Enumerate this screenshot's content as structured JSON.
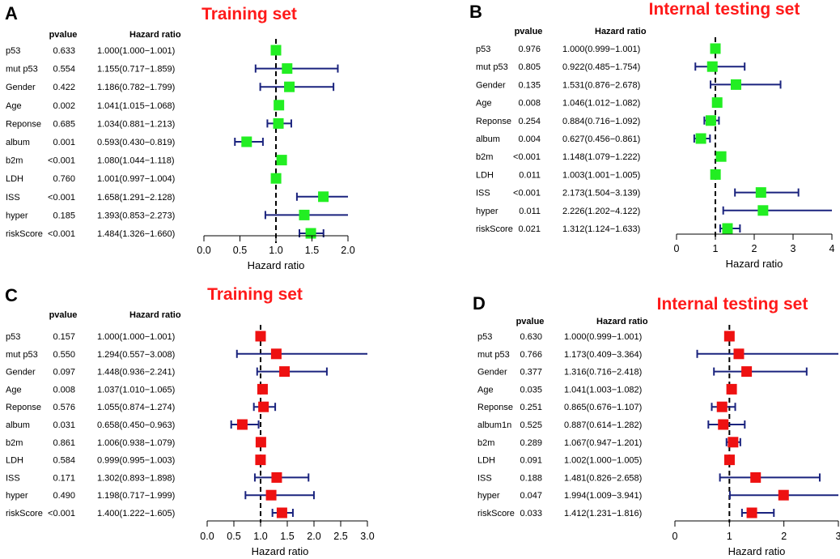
{
  "figure": {
    "background": "#ffffff"
  },
  "chart_data": [
    {
      "type": "forest",
      "letter": "A",
      "title": "Training set",
      "color": "#22ee22",
      "pvalue_header": "pvalue",
      "hr_header": "Hazard ratio",
      "xlabel": "Hazard ratio",
      "xlim": [
        0,
        2
      ],
      "xticks": [
        0,
        0.5,
        1,
        1.5,
        2
      ],
      "xtick_labels": [
        "0.0",
        "0.5",
        "1.0",
        "1.5",
        "2.0"
      ],
      "reference_line": 1,
      "rows": [
        {
          "name": "p53",
          "pvalue": "0.633",
          "hr_text": "1.000(1.000−1.001)",
          "hr": 1.0,
          "lo": 1.0,
          "hi": 1.001
        },
        {
          "name": "mut p53",
          "pvalue": "0.554",
          "hr_text": "1.155(0.717−1.859)",
          "hr": 1.155,
          "lo": 0.717,
          "hi": 1.859
        },
        {
          "name": "Gender",
          "pvalue": "0.422",
          "hr_text": "1.186(0.782−1.799)",
          "hr": 1.186,
          "lo": 0.782,
          "hi": 1.799
        },
        {
          "name": "Age",
          "pvalue": "0.002",
          "hr_text": "1.041(1.015−1.068)",
          "hr": 1.041,
          "lo": 1.015,
          "hi": 1.068
        },
        {
          "name": "Reponse",
          "pvalue": "0.685",
          "hr_text": "1.034(0.881−1.213)",
          "hr": 1.034,
          "lo": 0.881,
          "hi": 1.213
        },
        {
          "name": "album",
          "pvalue": "0.001",
          "hr_text": "0.593(0.430−0.819)",
          "hr": 0.593,
          "lo": 0.43,
          "hi": 0.819
        },
        {
          "name": "b2m",
          "pvalue": "<0.001",
          "hr_text": "1.080(1.044−1.118)",
          "hr": 1.08,
          "lo": 1.044,
          "hi": 1.118
        },
        {
          "name": "LDH",
          "pvalue": "0.760",
          "hr_text": "1.001(0.997−1.004)",
          "hr": 1.001,
          "lo": 0.997,
          "hi": 1.004
        },
        {
          "name": "ISS",
          "pvalue": "<0.001",
          "hr_text": "1.658(1.291−2.128)",
          "hr": 1.658,
          "lo": 1.291,
          "hi": 2.128
        },
        {
          "name": "hyper",
          "pvalue": "0.185",
          "hr_text": "1.393(0.853−2.273)",
          "hr": 1.393,
          "lo": 0.853,
          "hi": 2.273
        },
        {
          "name": "riskScore",
          "pvalue": "<0.001",
          "hr_text": "1.484(1.326−1.660)",
          "hr": 1.484,
          "lo": 1.326,
          "hi": 1.66
        }
      ]
    },
    {
      "type": "forest",
      "letter": "B",
      "title": "Internal testing set",
      "color": "#22ee22",
      "pvalue_header": "pvalue",
      "hr_header": "Hazard ratio",
      "xlabel": "Hazard ratio",
      "xlim": [
        0,
        4
      ],
      "xticks": [
        0,
        1,
        2,
        3,
        4
      ],
      "xtick_labels": [
        "0",
        "1",
        "2",
        "3",
        "4"
      ],
      "reference_line": 1,
      "rows": [
        {
          "name": "p53",
          "pvalue": "0.976",
          "hr_text": "1.000(0.999−1.001)",
          "hr": 1.0,
          "lo": 0.999,
          "hi": 1.001
        },
        {
          "name": "mut p53",
          "pvalue": "0.805",
          "hr_text": "0.922(0.485−1.754)",
          "hr": 0.922,
          "lo": 0.485,
          "hi": 1.754
        },
        {
          "name": "Gender",
          "pvalue": "0.135",
          "hr_text": "1.531(0.876−2.678)",
          "hr": 1.531,
          "lo": 0.876,
          "hi": 2.678
        },
        {
          "name": "Age",
          "pvalue": "0.008",
          "hr_text": "1.046(1.012−1.082)",
          "hr": 1.046,
          "lo": 1.012,
          "hi": 1.082
        },
        {
          "name": "Reponse",
          "pvalue": "0.254",
          "hr_text": "0.884(0.716−1.092)",
          "hr": 0.884,
          "lo": 0.716,
          "hi": 1.092
        },
        {
          "name": "album",
          "pvalue": "0.004",
          "hr_text": "0.627(0.456−0.861)",
          "hr": 0.627,
          "lo": 0.456,
          "hi": 0.861
        },
        {
          "name": "b2m",
          "pvalue": "<0.001",
          "hr_text": "1.148(1.079−1.222)",
          "hr": 1.148,
          "lo": 1.079,
          "hi": 1.222
        },
        {
          "name": "LDH",
          "pvalue": "0.011",
          "hr_text": "1.003(1.001−1.005)",
          "hr": 1.003,
          "lo": 1.001,
          "hi": 1.005
        },
        {
          "name": "ISS",
          "pvalue": "<0.001",
          "hr_text": "2.173(1.504−3.139)",
          "hr": 2.173,
          "lo": 1.504,
          "hi": 3.139
        },
        {
          "name": "hyper",
          "pvalue": "0.011",
          "hr_text": "2.226(1.202−4.122)",
          "hr": 2.226,
          "lo": 1.202,
          "hi": 4.122
        },
        {
          "name": "riskScore",
          "pvalue": "0.021",
          "hr_text": "1.312(1.124−1.633)",
          "hr": 1.312,
          "lo": 1.124,
          "hi": 1.633
        }
      ]
    },
    {
      "type": "forest",
      "letter": "C",
      "title": "Training set",
      "color": "#ee1111",
      "pvalue_header": "pvalue",
      "hr_header": "Hazard ratio",
      "xlabel": "Hazard ratio",
      "xlim": [
        0,
        3
      ],
      "xticks": [
        0,
        0.5,
        1,
        1.5,
        2,
        2.5,
        3
      ],
      "xtick_labels": [
        "0.0",
        "0.5",
        "1.0",
        "1.5",
        "2.0",
        "2.5",
        "3.0"
      ],
      "reference_line": 1,
      "rows": [
        {
          "name": "p53",
          "pvalue": "0.157",
          "hr_text": "1.000(1.000−1.001)",
          "hr": 1.0,
          "lo": 1.0,
          "hi": 1.001
        },
        {
          "name": "mut p53",
          "pvalue": "0.550",
          "hr_text": "1.294(0.557−3.008)",
          "hr": 1.294,
          "lo": 0.557,
          "hi": 3.008
        },
        {
          "name": "Gender",
          "pvalue": "0.097",
          "hr_text": "1.448(0.936−2.241)",
          "hr": 1.448,
          "lo": 0.936,
          "hi": 2.241
        },
        {
          "name": "Age",
          "pvalue": "0.008",
          "hr_text": "1.037(1.010−1.065)",
          "hr": 1.037,
          "lo": 1.01,
          "hi": 1.065
        },
        {
          "name": "Reponse",
          "pvalue": "0.576",
          "hr_text": "1.055(0.874−1.274)",
          "hr": 1.055,
          "lo": 0.874,
          "hi": 1.274
        },
        {
          "name": "album",
          "pvalue": "0.031",
          "hr_text": "0.658(0.450−0.963)",
          "hr": 0.658,
          "lo": 0.45,
          "hi": 0.963
        },
        {
          "name": "b2m",
          "pvalue": "0.861",
          "hr_text": "1.006(0.938−1.079)",
          "hr": 1.006,
          "lo": 0.938,
          "hi": 1.079
        },
        {
          "name": "LDH",
          "pvalue": "0.584",
          "hr_text": "0.999(0.995−1.003)",
          "hr": 0.999,
          "lo": 0.995,
          "hi": 1.003
        },
        {
          "name": "ISS",
          "pvalue": "0.171",
          "hr_text": "1.302(0.893−1.898)",
          "hr": 1.302,
          "lo": 0.893,
          "hi": 1.898
        },
        {
          "name": "hyper",
          "pvalue": "0.490",
          "hr_text": "1.198(0.717−1.999)",
          "hr": 1.198,
          "lo": 0.717,
          "hi": 1.999
        },
        {
          "name": "riskScore",
          "pvalue": "<0.001",
          "hr_text": "1.400(1.222−1.605)",
          "hr": 1.4,
          "lo": 1.222,
          "hi": 1.605
        }
      ]
    },
    {
      "type": "forest",
      "letter": "D",
      "title": "Internal testing set",
      "color": "#ee1111",
      "pvalue_header": "pvalue",
      "hr_header": "Hazard ratio",
      "xlabel": "Hazard ratio",
      "xlim": [
        0,
        3
      ],
      "xticks": [
        0,
        1,
        2,
        3
      ],
      "xtick_labels": [
        "0",
        "1",
        "2",
        "3"
      ],
      "reference_line": 1,
      "rows": [
        {
          "name": "p53",
          "pvalue": "0.630",
          "hr_text": "1.000(0.999−1.001)",
          "hr": 1.0,
          "lo": 0.999,
          "hi": 1.001
        },
        {
          "name": "mut p53",
          "pvalue": "0.766",
          "hr_text": "1.173(0.409−3.364)",
          "hr": 1.173,
          "lo": 0.409,
          "hi": 3.364
        },
        {
          "name": "Gender",
          "pvalue": "0.377",
          "hr_text": "1.316(0.716−2.418)",
          "hr": 1.316,
          "lo": 0.716,
          "hi": 2.418
        },
        {
          "name": "Age",
          "pvalue": "0.035",
          "hr_text": "1.041(1.003−1.082)",
          "hr": 1.041,
          "lo": 1.003,
          "hi": 1.082
        },
        {
          "name": "Reponse",
          "pvalue": "0.251",
          "hr_text": "0.865(0.676−1.107)",
          "hr": 0.865,
          "lo": 0.676,
          "hi": 1.107
        },
        {
          "name": "album1n",
          "pvalue": "0.525",
          "hr_text": "0.887(0.614−1.282)",
          "hr": 0.887,
          "lo": 0.614,
          "hi": 1.282
        },
        {
          "name": "b2m",
          "pvalue": "0.289",
          "hr_text": "1.067(0.947−1.201)",
          "hr": 1.067,
          "lo": 0.947,
          "hi": 1.201
        },
        {
          "name": "LDH",
          "pvalue": "0.091",
          "hr_text": "1.002(1.000−1.005)",
          "hr": 1.002,
          "lo": 1.0,
          "hi": 1.005
        },
        {
          "name": "ISS",
          "pvalue": "0.188",
          "hr_text": "1.481(0.826−2.658)",
          "hr": 1.481,
          "lo": 0.826,
          "hi": 2.658
        },
        {
          "name": "hyper",
          "pvalue": "0.047",
          "hr_text": "1.994(1.009−3.941)",
          "hr": 1.994,
          "lo": 1.009,
          "hi": 3.941
        },
        {
          "name": "riskScore",
          "pvalue": "0.033",
          "hr_text": "1.412(1.231−1.816)",
          "hr": 1.412,
          "lo": 1.231,
          "hi": 1.816
        }
      ]
    }
  ]
}
